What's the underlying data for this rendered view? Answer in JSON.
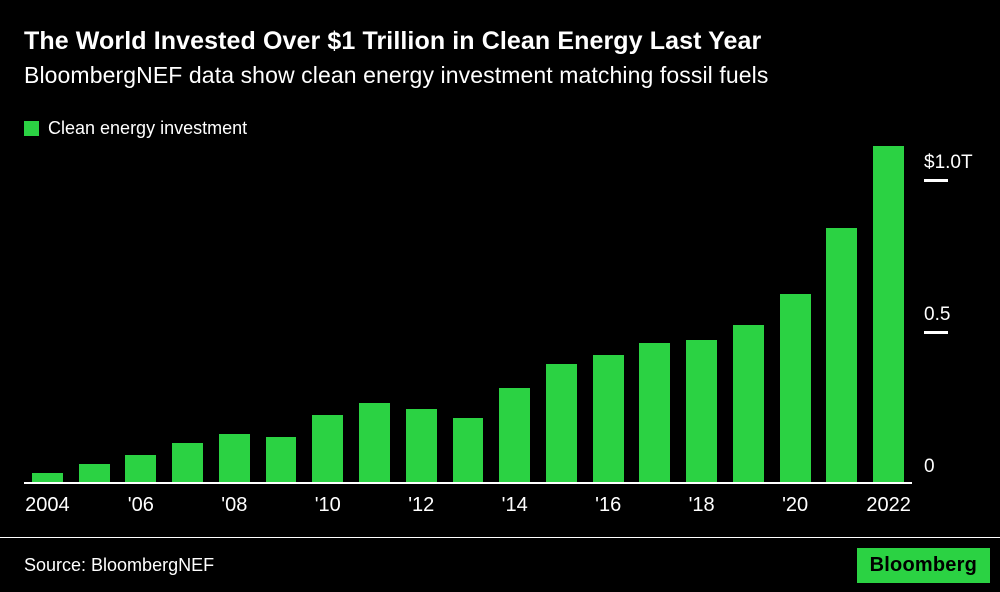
{
  "header": {
    "title": "The World Invested Over $1 Trillion in Clean Energy Last Year",
    "subtitle": "BloombergNEF data show clean energy investment matching fossil fuels"
  },
  "legend": {
    "label": "Clean energy investment"
  },
  "chart_data": {
    "type": "bar",
    "title": "The World Invested Over $1 Trillion in Clean Energy Last Year",
    "subtitle": "BloombergNEF data show clean energy investment matching fossil fuels",
    "series_name": "Clean energy investment",
    "unit": "trillion USD",
    "categories": [
      "2004",
      "2005",
      "2006",
      "2007",
      "2008",
      "2009",
      "2010",
      "2011",
      "2012",
      "2013",
      "2014",
      "2015",
      "2016",
      "2017",
      "2018",
      "2019",
      "2020",
      "2021",
      "2022"
    ],
    "values": [
      0.03,
      0.06,
      0.09,
      0.13,
      0.16,
      0.15,
      0.22,
      0.26,
      0.24,
      0.21,
      0.31,
      0.39,
      0.42,
      0.46,
      0.47,
      0.52,
      0.62,
      0.84,
      1.11
    ],
    "x_tick_labels": [
      "2004",
      "",
      "'06",
      "",
      "'08",
      "",
      "'10",
      "",
      "'12",
      "",
      "'14",
      "",
      "'16",
      "",
      "'18",
      "",
      "'20",
      "",
      "2022"
    ],
    "y_ticks": [
      {
        "label": "$1.0T",
        "value": 1.0,
        "tick": true
      },
      {
        "label": "0.5",
        "value": 0.5,
        "tick": true
      },
      {
        "label": "0",
        "value": 0.0,
        "tick": false
      }
    ],
    "ylim": [
      0,
      1.13
    ],
    "bar_color": "#2bd243",
    "background_color": "#000000",
    "text_color": "#ffffff",
    "grid": false,
    "legend_position": "top-left",
    "y_axis_position": "right"
  },
  "footer": {
    "source": "Source: BloombergNEF",
    "logo": "Bloomberg"
  }
}
